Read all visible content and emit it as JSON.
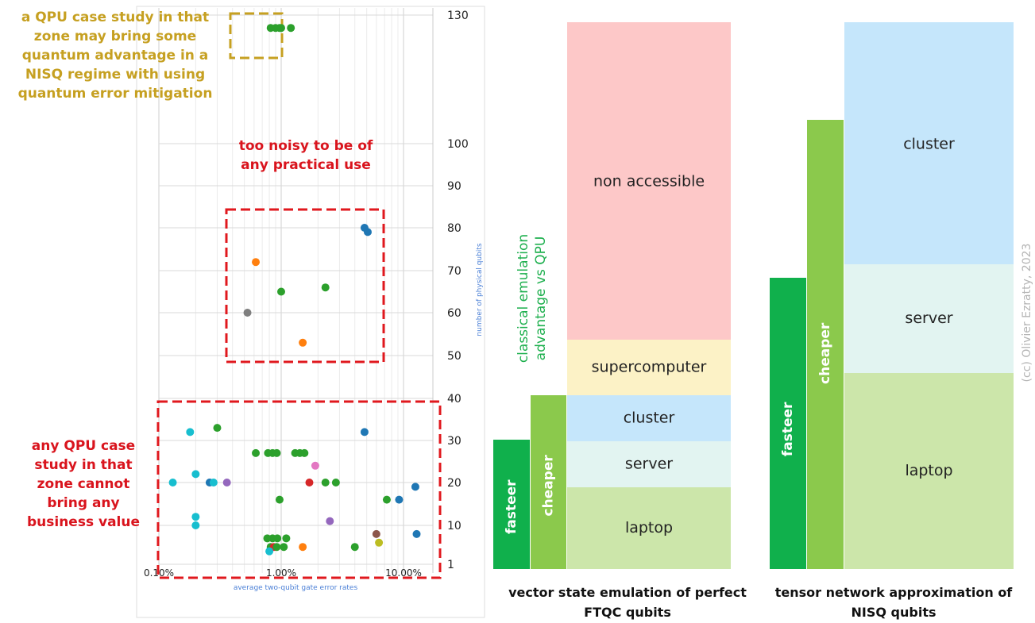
{
  "chart_data": [
    {
      "type": "scatter",
      "xlabel": "average two-qubit gate error rates",
      "ylabel": "number of physical qubits",
      "x_scale": "log",
      "xlim": [
        0.1,
        20
      ],
      "x_ticks": [
        "0.10%",
        "1.00%",
        "10.00%"
      ],
      "y_ticks": [
        "1",
        "10",
        "20",
        "30",
        "40",
        "50",
        "60",
        "70",
        "80",
        "90",
        "100",
        "130"
      ],
      "grid": true,
      "points": [
        {
          "x": 0.82,
          "y": 127,
          "color": "#2ca02c"
        },
        {
          "x": 0.9,
          "y": 127,
          "color": "#2ca02c"
        },
        {
          "x": 0.97,
          "y": 127,
          "color": "#2ca02c"
        },
        {
          "x": 1.0,
          "y": 127,
          "color": "#2ca02c"
        },
        {
          "x": 1.2,
          "y": 127,
          "color": "#2ca02c"
        },
        {
          "x": 4.8,
          "y": 80,
          "color": "#1f77b4"
        },
        {
          "x": 5.1,
          "y": 79,
          "color": "#1f77b4"
        },
        {
          "x": 0.62,
          "y": 72,
          "color": "#ff7f0e"
        },
        {
          "x": 2.3,
          "y": 66,
          "color": "#2ca02c"
        },
        {
          "x": 1.0,
          "y": 65,
          "color": "#2ca02c"
        },
        {
          "x": 0.53,
          "y": 60,
          "color": "#7f7f7f"
        },
        {
          "x": 1.5,
          "y": 53,
          "color": "#ff7f0e"
        },
        {
          "x": 0.3,
          "y": 33,
          "color": "#2ca02c"
        },
        {
          "x": 0.18,
          "y": 32,
          "color": "#17becf"
        },
        {
          "x": 4.8,
          "y": 32,
          "color": "#1f77b4"
        },
        {
          "x": 0.62,
          "y": 27,
          "color": "#2ca02c"
        },
        {
          "x": 0.78,
          "y": 27,
          "color": "#2ca02c"
        },
        {
          "x": 0.85,
          "y": 27,
          "color": "#2ca02c"
        },
        {
          "x": 0.92,
          "y": 27,
          "color": "#2ca02c"
        },
        {
          "x": 1.3,
          "y": 27,
          "color": "#2ca02c"
        },
        {
          "x": 1.42,
          "y": 27,
          "color": "#2ca02c"
        },
        {
          "x": 1.55,
          "y": 27,
          "color": "#2ca02c"
        },
        {
          "x": 1.9,
          "y": 24,
          "color": "#e377c2"
        },
        {
          "x": 0.2,
          "y": 22,
          "color": "#17becf"
        },
        {
          "x": 0.13,
          "y": 20,
          "color": "#17becf"
        },
        {
          "x": 0.26,
          "y": 20,
          "color": "#1f77b4"
        },
        {
          "x": 0.28,
          "y": 20,
          "color": "#17becf"
        },
        {
          "x": 0.36,
          "y": 20,
          "color": "#9467bd"
        },
        {
          "x": 1.7,
          "y": 20,
          "color": "#d62728"
        },
        {
          "x": 2.3,
          "y": 20,
          "color": "#2ca02c"
        },
        {
          "x": 2.8,
          "y": 20,
          "color": "#2ca02c"
        },
        {
          "x": 12.5,
          "y": 19,
          "color": "#1f77b4"
        },
        {
          "x": 0.97,
          "y": 16,
          "color": "#2ca02c"
        },
        {
          "x": 7.3,
          "y": 16,
          "color": "#2ca02c"
        },
        {
          "x": 9.2,
          "y": 16,
          "color": "#1f77b4"
        },
        {
          "x": 0.2,
          "y": 12,
          "color": "#17becf"
        },
        {
          "x": 2.5,
          "y": 11,
          "color": "#9467bd"
        },
        {
          "x": 0.2,
          "y": 10,
          "color": "#17becf"
        },
        {
          "x": 6.0,
          "y": 8,
          "color": "#8c564b"
        },
        {
          "x": 12.8,
          "y": 8,
          "color": "#1f77b4"
        },
        {
          "x": 0.77,
          "y": 7,
          "color": "#2ca02c"
        },
        {
          "x": 0.85,
          "y": 7,
          "color": "#2ca02c"
        },
        {
          "x": 0.93,
          "y": 7,
          "color": "#2ca02c"
        },
        {
          "x": 1.1,
          "y": 7,
          "color": "#2ca02c"
        },
        {
          "x": 6.3,
          "y": 6,
          "color": "#bcbd22"
        },
        {
          "x": 0.82,
          "y": 5,
          "color": "#2ca02c"
        },
        {
          "x": 0.87,
          "y": 5,
          "color": "#d62728"
        },
        {
          "x": 0.92,
          "y": 5,
          "color": "#2ca02c"
        },
        {
          "x": 1.05,
          "y": 5,
          "color": "#2ca02c"
        },
        {
          "x": 1.5,
          "y": 5,
          "color": "#ff7f0e"
        },
        {
          "x": 4.0,
          "y": 5,
          "color": "#2ca02c"
        },
        {
          "x": 0.8,
          "y": 4,
          "color": "#17becf"
        }
      ]
    },
    {
      "type": "bar",
      "caption": "vector state emulation of perfect FTQC qubits",
      "bars": [
        {
          "label": "fasteer",
          "color": "#10b04c"
        },
        {
          "label": "cheaper",
          "color": "#8bc94c"
        }
      ],
      "segments": [
        {
          "label": "laptop",
          "color": "#cce6aa"
        },
        {
          "label": "server",
          "color": "#e2f4f1"
        },
        {
          "label": "cluster",
          "color": "#c5e6fb"
        },
        {
          "label": "supercomputer",
          "color": "#fcf2c6"
        },
        {
          "label": "non accessible",
          "color": "#fdc8c8"
        }
      ]
    },
    {
      "type": "bar",
      "caption": "tensor network approximation of NISQ qubits",
      "bars": [
        {
          "label": "fasteer",
          "color": "#10b04c"
        },
        {
          "label": "cheaper",
          "color": "#8bc94c"
        }
      ],
      "segments": [
        {
          "label": "laptop",
          "color": "#cce6aa"
        },
        {
          "label": "server",
          "color": "#e2f4f1"
        },
        {
          "label": "cluster",
          "color": "#c5e6fb"
        }
      ]
    }
  ],
  "annotations": {
    "qpu_advantage": "a QPU case study in that zone may bring some quantum advantage in a NISQ regime with using quantum error mitigation",
    "too_noisy": "too noisy to be of any practical use",
    "no_value": "any QPU case study in that zone cannot bring any business value",
    "emulation_advantage": "classical emulation advantage vs QPU",
    "copyright": "(cc) Olivier Ezratty, 2023"
  },
  "colors": {
    "gold": "#c6a021",
    "red": "#d9141d",
    "green_text": "#1fb04f"
  }
}
